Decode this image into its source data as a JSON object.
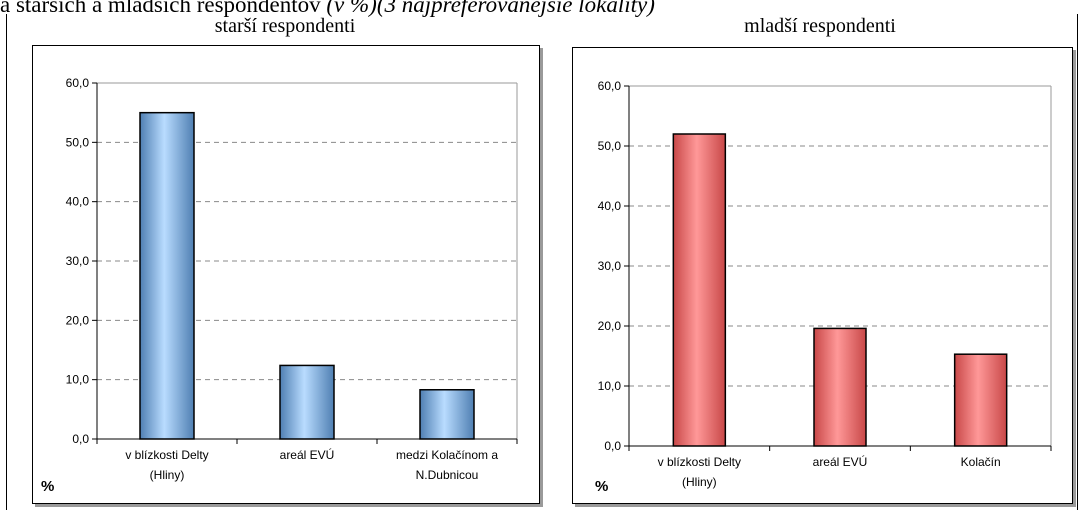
{
  "header": {
    "text_plain": "a starších a mladších respondentov ",
    "text_italic": "(v %)(3 najpreferovanejšie lokality)"
  },
  "chart_data": [
    {
      "type": "bar",
      "title": "starší respondenti",
      "ylabel": "%",
      "ylim": [
        0,
        60
      ],
      "yticks": [
        "0,0",
        "10,0",
        "20,0",
        "30,0",
        "40,0",
        "50,0",
        "60,0"
      ],
      "grid": true,
      "categories": [
        [
          "v blízkosti Delty",
          "(Hliny)"
        ],
        [
          "areál EVÚ"
        ],
        [
          "medzi Kolačínom a",
          "N.Dubnicou"
        ]
      ],
      "values": [
        55.0,
        12.4,
        8.3
      ],
      "colors": {
        "bar_dark": "#4f7fb2",
        "bar_light": "#b9dcff"
      }
    },
    {
      "type": "bar",
      "title": "mladší respondenti",
      "ylabel": "%",
      "ylim": [
        0,
        60
      ],
      "yticks": [
        "0,0",
        "10,0",
        "20,0",
        "30,0",
        "40,0",
        "50,0",
        "60,0"
      ],
      "grid": true,
      "categories": [
        [
          "v blízkosti Delty",
          "(Hliny)"
        ],
        [
          "areál EVÚ"
        ],
        [
          "Kolačín"
        ]
      ],
      "values": [
        52.0,
        19.6,
        15.3
      ],
      "colors": {
        "bar_dark": "#c84848",
        "bar_light": "#ff9898"
      }
    }
  ]
}
